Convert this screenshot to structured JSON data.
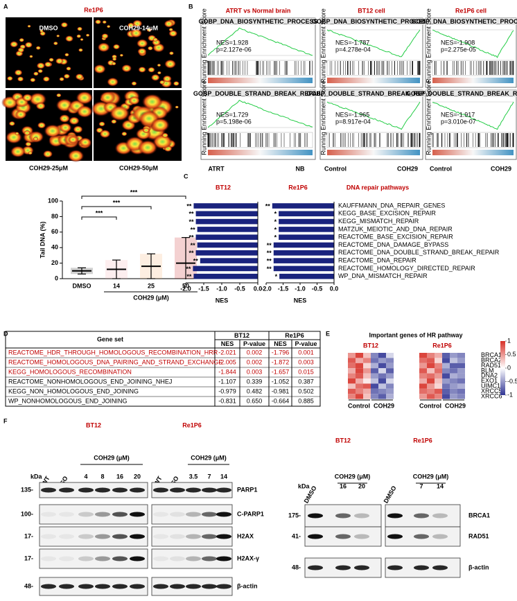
{
  "panel_labels": [
    "A",
    "B",
    "C",
    "D",
    "E",
    "F"
  ],
  "panel_a": {
    "title": "Re1P6",
    "image_labels": [
      "DMSO",
      "COH29-14μM",
      "COH29-25μM",
      "COH29-50μM"
    ]
  },
  "panel_b": {
    "y_label": "Running Enrichment Score",
    "columns": [
      {
        "title": "ATRT vs Normal brain",
        "left": "ATRT",
        "right": "NB",
        "plots": [
          {
            "gene_set": "GOBP_DNA_BIOSYNTHETIC_PROCESS",
            "nes": "NES=1.928",
            "p": "p=2.127e-06"
          },
          {
            "gene_set": "GOBP_DOUBLE_STRAND_BREAK_REPAIR",
            "nes": "NES=1.729",
            "p": "p=5.198e-06"
          }
        ]
      },
      {
        "title": "BT12 cell",
        "left": "Control",
        "right": "COH29",
        "plots": [
          {
            "gene_set": "GOBP_DNA_BIOSYNTHETIC_PROCESS",
            "nes": "NES=-1.787",
            "p": "p=4.278e-04"
          },
          {
            "gene_set": "GOBP_DOUBLE_STRAND_BREAK_REPAIR",
            "nes": "NES=-1.965",
            "p": "p=8.917e-04"
          }
        ]
      },
      {
        "title": "Re1P6 cell",
        "left": "Control",
        "right": "COH29",
        "plots": [
          {
            "gene_set": "GOBP_DNA_BIOSYNTHETIC_PROCESS",
            "nes": "NES=-1.908",
            "p": "p=2.275e-05"
          },
          {
            "gene_set": "GOBP_DOUBLE_STRAND_BREAK_REPAIR",
            "nes": "NES=-1.917",
            "p": "p=3.010e-07"
          }
        ]
      }
    ]
  },
  "chart_data": [
    {
      "type": "dot",
      "categories": [
        "DMSO",
        "14",
        "25",
        "50"
      ],
      "values": [
        10,
        12,
        16,
        20
      ],
      "errors": [
        4,
        12,
        16,
        33
      ],
      "colors": [
        "#000000",
        "#f4a0a8",
        "#f5a25a",
        "#c00000"
      ],
      "ylim": [
        0,
        100
      ],
      "yticks": [
        0,
        20,
        40,
        60,
        80,
        100
      ],
      "ylabel": "Tail DNA (%)",
      "xlabel": "COH29 (μM)",
      "significance": [
        "***",
        "***",
        "***"
      ]
    },
    {
      "type": "hbar",
      "title": "BT12",
      "values": [
        -1.78,
        -1.72,
        -1.72,
        -1.68,
        -1.72,
        -1.68,
        -1.72,
        -1.6,
        -1.8,
        -1.78
      ],
      "significance": [
        "**",
        "**",
        "**",
        "**",
        "**",
        "**",
        "**",
        "**",
        "**",
        "**"
      ],
      "color": "#1a237e",
      "xlim": [
        -2,
        0
      ],
      "xticks": [
        {
          "value": -2,
          "label": "-2.0"
        },
        {
          "value": -1.5,
          "label": "-1.5"
        },
        {
          "value": -1,
          "label": "-1.0"
        },
        {
          "value": -0.5,
          "label": "-0.5"
        },
        {
          "value": 0,
          "label": "0.0"
        }
      ],
      "xlabel": "NES"
    },
    {
      "type": "hbar",
      "title": "Re1P6",
      "heading": "DNA repair pathways",
      "categories": [
        "KAUFFMANN_DNA_REPAIR_GENES",
        "KEGG_BASE_EXCISION_REPAIR",
        "KEGG_MISMATCH_REPAIR",
        "MATZUK_MEIOTIC_AND_DNA_REPAIR",
        "REACTOME_BASE_EXCISION_REPAIR",
        "REACTOME_DNA_DAMAGE_BYPASS",
        "REACTOME_DNA_DOUBLE_STRAND_BREAK_REPAIR",
        "REACTOME_DNA_REPAIR",
        "REACTOME_HOMOLOGY_DIRECTED_REPAIR",
        "WP_DNA_MISMATCH_REPAIR"
      ],
      "values": [
        -1.82,
        -1.63,
        -1.63,
        -1.63,
        -1.63,
        -1.78,
        -1.78,
        -1.78,
        -1.78,
        -1.61
      ],
      "significance": [
        "**",
        "*",
        "*",
        "*",
        "*",
        "**",
        "**",
        "**",
        "**",
        "*"
      ],
      "color": "#1a237e",
      "xlim": [
        -2,
        0
      ],
      "xticks": [
        {
          "value": -2,
          "label": "-2.0"
        },
        {
          "value": -1.5,
          "label": "-1.5"
        },
        {
          "value": -1,
          "label": "-1.0"
        },
        {
          "value": -0.5,
          "label": "-0.5"
        },
        {
          "value": 0,
          "label": "0.0"
        }
      ],
      "xlabel": "NES"
    },
    {
      "type": "heatmap",
      "title": "Important genes of HR pathway",
      "genes": [
        "BRCA1",
        "BRCA2",
        "RAD51",
        "BLM",
        "DNA2",
        "EXO1",
        "UIMC1",
        "XRCC5",
        "XRCC6"
      ],
      "column_groups": [
        "Control",
        "COH29"
      ],
      "clim": [
        -1,
        1
      ],
      "cticks": [
        1,
        0.5,
        0,
        -0.5,
        -1
      ],
      "groups": [
        {
          "name": "BT12",
          "values": [
            [
              0.5,
              0.9,
              0.3,
              -0.6,
              -0.9,
              -0.2
            ],
            [
              0.8,
              0.4,
              0.6,
              -0.7,
              -0.5,
              -0.6
            ],
            [
              0.7,
              0.9,
              0.2,
              -0.4,
              -0.9,
              -0.5
            ],
            [
              0.4,
              0.9,
              0.5,
              -0.8,
              -0.2,
              -0.8
            ],
            [
              0.6,
              0.8,
              0.3,
              -0.5,
              -0.7,
              -0.5
            ],
            [
              0.9,
              0.4,
              0.1,
              -0.3,
              -0.9,
              -0.2
            ],
            [
              0.3,
              0.7,
              0.8,
              -0.9,
              -0.3,
              -0.6
            ],
            [
              0.8,
              0.6,
              0.4,
              -0.7,
              -0.6,
              -0.5
            ],
            [
              0.6,
              0.9,
              0.3,
              -0.6,
              -0.8,
              -0.4
            ]
          ]
        },
        {
          "name": "Re1P6",
          "values": [
            [
              0.9,
              0.6,
              0.4,
              -0.8,
              -0.5,
              -0.6
            ],
            [
              0.7,
              0.8,
              0.2,
              -0.9,
              -0.3,
              -0.5
            ],
            [
              0.5,
              0.9,
              0.6,
              -0.4,
              -0.8,
              -0.8
            ],
            [
              0.8,
              0.3,
              0.7,
              -0.6,
              -0.7,
              -0.5
            ],
            [
              0.6,
              0.7,
              0.5,
              -0.9,
              -0.4,
              -0.5
            ],
            [
              0.4,
              0.9,
              0.3,
              -0.5,
              -0.6,
              -0.7
            ],
            [
              0.9,
              0.5,
              0.2,
              -0.7,
              -0.5,
              -0.4
            ],
            [
              0.7,
              0.6,
              0.8,
              -0.8,
              -0.6,
              -0.7
            ],
            [
              0.5,
              0.8,
              0.6,
              -0.9,
              -0.5,
              -0.6
            ]
          ]
        }
      ]
    }
  ],
  "panel_d": {
    "header": [
      "Gene set",
      "BT12",
      "Re1P6"
    ],
    "subheader": [
      "NES",
      "P-value",
      "NES",
      "P-value"
    ],
    "rows": [
      {
        "color": "#c00000",
        "cells": [
          "REACTOME_HDR_THROUGH_HOMOLOGOUS_RECOMBINATION_HRR",
          "-2.021",
          "0.002",
          "-1.796",
          "0.001"
        ]
      },
      {
        "color": "#c00000",
        "cells": [
          "REACTOME_HOMOLOGOUS_DNA_PAIRING_AND_STRAND_EXCHANGE",
          "-2.005",
          "0.002",
          "-1.872",
          "0.003"
        ]
      },
      {
        "color": "#c00000",
        "cells": [
          "KEGG_HOMOLOGOUS_RECOMBINATION",
          "-1.844",
          "0.003",
          "-1.657",
          "0.015"
        ]
      },
      {
        "color": "#000000",
        "cells": [
          "REACTOME_NONHOMOLOGOUS_END_JOINING_NHEJ",
          "-1.107",
          "0.339",
          "-1.052",
          "0.387"
        ]
      },
      {
        "color": "#000000",
        "cells": [
          "KEGG_NON_HOMOLOGOUS_END_JOINING",
          "-0.979",
          "0.482",
          "-0.981",
          "0.502"
        ]
      },
      {
        "color": "#000000",
        "cells": [
          "WP_NONHOMOLOGOUS_END_JOINING",
          "-0.831",
          "0.650",
          "-0.664",
          "0.885"
        ]
      }
    ]
  },
  "panel_f": {
    "unit": "kDa",
    "treatment": "COH29 (μM)",
    "left": {
      "groups": [
        {
          "title": "BT12",
          "lanes": [
            "WT",
            "DMSO",
            "4",
            "8",
            "16",
            "20"
          ]
        },
        {
          "title": "Re1P6",
          "lanes": [
            "WT",
            "DMSO",
            "3.5",
            "7",
            "14"
          ]
        }
      ],
      "markers": [
        "135-",
        "100-",
        "17-",
        "17-",
        "48-"
      ],
      "proteins": [
        "PARP1",
        "C-PARP1",
        "H2AX",
        "H2AX-γ",
        "β-actin"
      ]
    },
    "right": {
      "groups": [
        {
          "title": "BT12",
          "lanes": [
            "DMSO",
            "16",
            "20"
          ]
        },
        {
          "title": "Re1P6",
          "lanes": [
            "DMSO",
            "7",
            "14"
          ]
        }
      ],
      "markers": [
        "175-",
        "41-",
        "48-"
      ],
      "proteins": [
        "BRCA1",
        "RAD51",
        "β-actin"
      ]
    }
  }
}
